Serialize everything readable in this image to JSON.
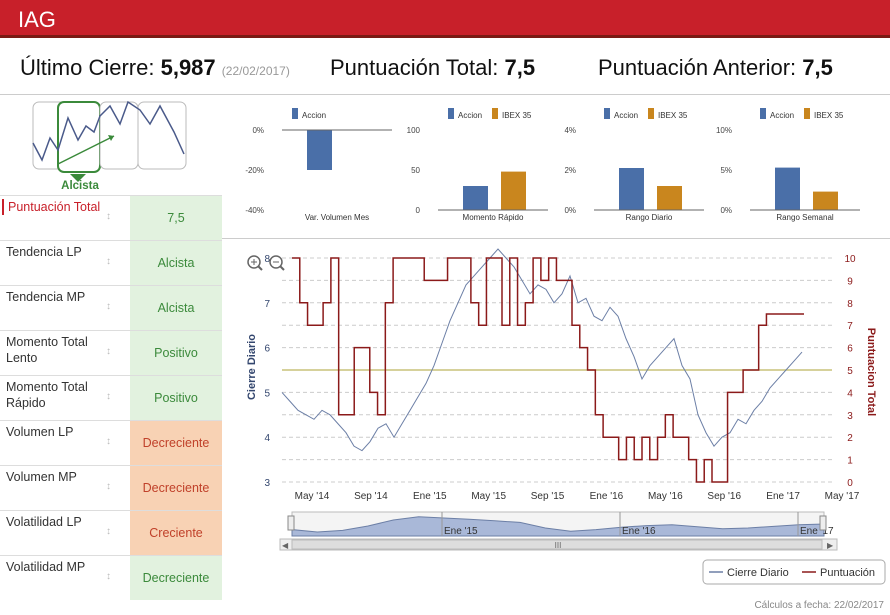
{
  "header": {
    "title": "IAG"
  },
  "summary": {
    "last_close_label": "Último Cierre:",
    "last_close_value": "5,987",
    "last_close_date": "(22/02/2017)",
    "total_score_label": "Puntuación Total:",
    "total_score_value": "7,5",
    "prev_score_label": "Puntuación Anterior:",
    "prev_score_value": "7,5"
  },
  "trend_widget": {
    "label": "Alcista"
  },
  "indicators": [
    {
      "label": "Puntuación Total",
      "value": "7,5",
      "status": "green"
    },
    {
      "label": "Tendencia LP",
      "value": "Alcista",
      "status": "green"
    },
    {
      "label": "Tendencia MP",
      "value": "Alcista",
      "status": "green"
    },
    {
      "label": "Momento Total Lento",
      "value": "Positivo",
      "status": "green"
    },
    {
      "label": "Momento Total Rápido",
      "value": "Positivo",
      "status": "green"
    },
    {
      "label": "Volumen LP",
      "value": "Decreciente",
      "status": "orange"
    },
    {
      "label": "Volumen MP",
      "value": "Decreciente",
      "status": "orange"
    },
    {
      "label": "Volatilidad LP",
      "value": "Creciente",
      "status": "orange"
    },
    {
      "label": "Volatilidad MP",
      "value": "Decreciente",
      "status": "green"
    }
  ],
  "colors": {
    "brand": "#c8202a",
    "accion": "#4a6fa8",
    "ibex": "#c9861e",
    "line": "#6c7fa6",
    "score": "#8b1a1a",
    "avg": "#c8c27a"
  },
  "chart_data": [
    {
      "type": "bar",
      "title": "Var. Volumen Mes",
      "legend": [
        "Accion"
      ],
      "categories": [
        "Var. Volumen Mes"
      ],
      "series": [
        {
          "name": "Accion",
          "values": [
            -20
          ]
        }
      ],
      "ylim": [
        -40,
        0
      ],
      "ticks": [
        "0%",
        "-20%",
        "-40%"
      ]
    },
    {
      "type": "bar",
      "title": "Momento Rápido",
      "legend": [
        "Accion",
        "IBEX 35"
      ],
      "categories": [
        "Momento Rápido"
      ],
      "series": [
        {
          "name": "Accion",
          "values": [
            30
          ]
        },
        {
          "name": "IBEX 35",
          "values": [
            48
          ]
        }
      ],
      "ylim": [
        0,
        100
      ],
      "ticks": [
        "100",
        "50",
        "0"
      ]
    },
    {
      "type": "bar",
      "title": "Rango Diario",
      "legend": [
        "Accion",
        "IBEX 35"
      ],
      "categories": [
        "Rango Diario"
      ],
      "series": [
        {
          "name": "Accion",
          "values": [
            2.1
          ]
        },
        {
          "name": "IBEX 35",
          "values": [
            1.2
          ]
        }
      ],
      "ylim": [
        0,
        4
      ],
      "ticks": [
        "4%",
        "2%",
        "0%"
      ]
    },
    {
      "type": "bar",
      "title": "Rango Semanal",
      "legend": [
        "Accion",
        "IBEX 35"
      ],
      "categories": [
        "Rango Semanal"
      ],
      "series": [
        {
          "name": "Accion",
          "values": [
            5.3
          ]
        },
        {
          "name": "IBEX 35",
          "values": [
            2.3
          ]
        }
      ],
      "ylim": [
        0,
        10
      ],
      "ticks": [
        "10%",
        "5%",
        "0%"
      ]
    },
    {
      "type": "line",
      "ylabel": "Cierre Diario",
      "y2label": "Puntuacion Total",
      "x_ticks": [
        "May '14",
        "Sep '14",
        "Ene '15",
        "May '15",
        "Sep '15",
        "Ene '16",
        "May '16",
        "Sep '16",
        "Ene '17",
        "May '17"
      ],
      "ylim": [
        3,
        8
      ],
      "y_ticks": [
        "8",
        "7",
        "6",
        "5",
        "4",
        "3"
      ],
      "y2lim": [
        0,
        10
      ],
      "y2_ticks": [
        "10",
        "9",
        "8",
        "7",
        "6",
        "5",
        "4",
        "3",
        "2",
        "1",
        "0"
      ],
      "reference_line": 5.5,
      "series": [
        {
          "name": "Cierre Diario",
          "values": [
            5.0,
            4.8,
            4.6,
            4.5,
            4.4,
            4.6,
            4.5,
            4.3,
            4.1,
            3.8,
            3.7,
            3.9,
            4.2,
            4.3,
            4.0,
            4.3,
            4.6,
            4.9,
            5.2,
            5.6,
            6.1,
            6.6,
            7.0,
            7.4,
            7.6,
            7.8,
            8.0,
            8.2,
            8.0,
            7.8,
            7.5,
            7.2,
            7.4,
            7.3,
            7.0,
            7.2,
            7.6,
            7.0,
            7.1,
            6.7,
            6.6,
            6.9,
            6.7,
            6.2,
            5.8,
            5.3,
            5.6,
            5.8,
            6.0,
            6.2,
            5.6,
            5.3,
            4.5,
            4.1,
            3.8,
            4.0,
            4.1,
            4.4,
            4.3,
            4.6,
            4.8,
            5.1,
            5.3,
            5.5,
            5.7,
            5.9
          ]
        },
        {
          "name": "Puntuación",
          "values": [
            10,
            8,
            7,
            7,
            8,
            10,
            3,
            3,
            6,
            6,
            4,
            3,
            8,
            10,
            10,
            10,
            10,
            9,
            9,
            9,
            10,
            10,
            10,
            8,
            7,
            10,
            10,
            7,
            10,
            7,
            8,
            10,
            9,
            10,
            9,
            9,
            7,
            6,
            5,
            3,
            2,
            2,
            1,
            2,
            1,
            2,
            1,
            2,
            3,
            2,
            2,
            1,
            0,
            1,
            0,
            0,
            4,
            4,
            5,
            5,
            7,
            7.5,
            7.5,
            7.5
          ]
        }
      ]
    },
    {
      "type": "area",
      "title": "navigator",
      "x_ticks": [
        "Ene '15",
        "Ene '16",
        "Ene '17"
      ],
      "values": [
        4.6,
        4.0,
        4.4,
        5.5,
        7.0,
        7.8,
        7.5,
        7.2,
        6.8,
        6.4,
        5.0,
        4.2,
        4.6,
        5.2,
        5.6,
        5.8,
        5.3,
        4.8,
        5.0,
        5.4,
        5.8,
        6.0
      ]
    }
  ],
  "legend": {
    "series1": "Cierre Diario",
    "series2": "Puntuación"
  },
  "footer": {
    "text": "Cálculos a fecha: 22/02/2017"
  },
  "scrollbar": {
    "grip": "III"
  }
}
